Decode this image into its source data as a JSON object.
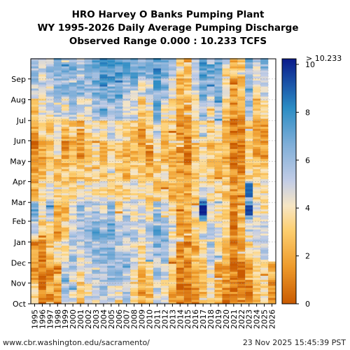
{
  "chart_data": {
    "type": "heatmap",
    "title_lines": [
      "HRO Harvey O Banks Pumping Plant",
      "WY 1995-2026 Daily Average Pumping Discharge",
      "Observed Range 0.000 : 10.233 TCFS"
    ],
    "x_categories": [
      "1995",
      "1996",
      "1997",
      "1998",
      "1999",
      "2000",
      "2001",
      "2002",
      "2003",
      "2004",
      "2005",
      "2006",
      "2007",
      "2008",
      "2009",
      "2010",
      "2011",
      "2012",
      "2013",
      "2014",
      "2015",
      "2016",
      "2017",
      "2018",
      "2019",
      "2020",
      "2021",
      "2022",
      "2023",
      "2024",
      "2025",
      "2026"
    ],
    "y_months": [
      "Oct",
      "Nov",
      "Dec",
      "Jan",
      "Feb",
      "Mar",
      "Apr",
      "May",
      "Jun",
      "Jul",
      "Aug",
      "Sep"
    ],
    "colorbar": {
      "min": 0,
      "max": 10,
      "ticks": [
        "0",
        "2",
        "4",
        "6",
        "8",
        "10"
      ],
      "over_label": "> 10.233",
      "stops": [
        {
          "v": 0,
          "color": "#c95a00"
        },
        {
          "v": 1.5,
          "color": "#ee9a2a"
        },
        {
          "v": 3,
          "color": "#fdcf70"
        },
        {
          "v": 4,
          "color": "#f7e6c4"
        },
        {
          "v": 5,
          "color": "#c3cde6"
        },
        {
          "v": 6.5,
          "color": "#7faed8"
        },
        {
          "v": 8,
          "color": "#2b8cc4"
        },
        {
          "v": 10,
          "color": "#0a1a8a"
        }
      ]
    },
    "monthly_mean_by_year": {
      "1995": [
        3.2,
        1.2,
        1.8,
        5.0,
        6.5,
        2.5,
        1.8,
        1.0,
        1.4,
        3.0,
        5.0,
        5.5
      ],
      "1996": [
        0.8,
        0.9,
        0.8,
        2.8,
        3.5,
        4.0,
        2.8,
        2.0,
        3.0,
        4.0,
        4.8,
        5.0
      ],
      "1997": [
        1.6,
        1.5,
        2.4,
        3.6,
        5.5,
        4.0,
        3.4,
        2.8,
        3.0,
        4.4,
        5.2,
        6.0
      ],
      "1998": [
        2.0,
        2.8,
        4.0,
        1.8,
        2.4,
        3.2,
        3.0,
        3.4,
        3.6,
        5.2,
        6.0,
        6.2
      ],
      "1999": [
        5.5,
        4.8,
        4.5,
        2.8,
        2.0,
        3.2,
        2.6,
        1.8,
        2.8,
        4.6,
        6.0,
        6.5
      ],
      "2000": [
        4.8,
        5.2,
        5.0,
        5.0,
        4.5,
        3.8,
        3.0,
        2.2,
        3.2,
        5.2,
        6.2,
        6.6
      ],
      "2001": [
        3.0,
        3.8,
        4.8,
        6.0,
        5.6,
        3.8,
        2.8,
        1.6,
        2.0,
        4.0,
        5.8,
        5.5
      ],
      "2002": [
        4.2,
        4.8,
        5.2,
        5.8,
        5.0,
        4.0,
        3.0,
        2.8,
        3.4,
        5.0,
        5.8,
        6.0
      ],
      "2003": [
        5.0,
        5.6,
        5.8,
        6.2,
        5.4,
        3.8,
        3.2,
        3.6,
        4.2,
        5.8,
        6.2,
        6.8
      ],
      "2004": [
        5.8,
        6.0,
        6.0,
        5.8,
        5.0,
        3.6,
        2.8,
        2.6,
        3.6,
        5.6,
        6.4,
        7.0
      ],
      "2005": [
        4.8,
        5.8,
        6.0,
        6.5,
        5.8,
        3.6,
        3.0,
        2.8,
        4.4,
        6.0,
        6.6,
        6.8
      ],
      "2006": [
        4.4,
        5.2,
        5.6,
        4.8,
        3.6,
        3.8,
        3.0,
        3.0,
        4.2,
        6.0,
        6.6,
        6.8
      ],
      "2007": [
        5.4,
        5.0,
        5.6,
        6.0,
        4.8,
        3.2,
        2.4,
        1.8,
        3.0,
        4.6,
        5.8,
        6.5
      ],
      "2008": [
        3.0,
        4.0,
        4.4,
        4.8,
        4.2,
        3.6,
        3.0,
        2.4,
        3.0,
        4.6,
        5.6,
        6.6
      ],
      "2009": [
        1.4,
        2.4,
        3.6,
        5.0,
        4.4,
        3.8,
        3.2,
        2.0,
        1.8,
        2.8,
        4.8,
        6.0
      ],
      "2010": [
        2.2,
        3.2,
        4.4,
        5.6,
        4.0,
        3.6,
        2.4,
        1.6,
        2.6,
        4.0,
        5.0,
        6.4
      ],
      "2011": [
        4.6,
        5.4,
        6.0,
        6.4,
        5.6,
        3.4,
        3.0,
        3.6,
        5.0,
        6.4,
        6.8,
        7.2
      ],
      "2012": [
        3.8,
        4.8,
        5.8,
        6.2,
        4.6,
        3.4,
        3.0,
        2.6,
        3.0,
        4.4,
        6.0,
        6.6
      ],
      "2013": [
        2.2,
        2.6,
        4.4,
        4.0,
        3.0,
        2.6,
        2.2,
        2.4,
        3.2,
        4.0,
        4.6,
        5.2
      ],
      "2014": [
        0.8,
        1.2,
        1.6,
        2.0,
        2.4,
        2.0,
        1.6,
        1.2,
        1.2,
        2.0,
        2.6,
        3.4
      ],
      "2015": [
        0.6,
        0.8,
        1.4,
        1.8,
        2.0,
        2.2,
        1.4,
        1.2,
        1.2,
        1.8,
        2.6,
        3.2
      ],
      "2016": [
        1.4,
        1.8,
        2.6,
        3.4,
        3.8,
        3.0,
        2.4,
        2.2,
        3.0,
        4.0,
        5.0,
        5.6
      ],
      "2017": [
        2.6,
        3.0,
        4.0,
        4.6,
        8.5,
        4.0,
        3.6,
        3.8,
        4.2,
        6.2,
        6.6,
        7.0
      ],
      "2018": [
        3.6,
        4.4,
        5.2,
        5.0,
        4.2,
        3.6,
        3.0,
        2.8,
        2.6,
        4.4,
        5.8,
        6.4
      ],
      "2019": [
        2.6,
        2.4,
        4.0,
        4.4,
        4.0,
        3.6,
        3.0,
        3.0,
        3.6,
        5.4,
        6.4,
        6.8
      ],
      "2020": [
        1.4,
        1.8,
        3.0,
        3.6,
        3.0,
        2.6,
        2.4,
        1.8,
        1.8,
        2.8,
        3.6,
        4.6
      ],
      "2021": [
        0.8,
        0.9,
        1.2,
        1.4,
        1.6,
        1.6,
        1.2,
        0.9,
        1.0,
        1.4,
        1.8,
        2.2
      ],
      "2022": [
        0.6,
        0.9,
        1.6,
        2.6,
        2.4,
        2.0,
        1.4,
        1.0,
        1.0,
        1.6,
        2.0,
        2.6
      ],
      "2023": [
        1.0,
        1.6,
        3.2,
        5.0,
        6.2,
        3.8,
        3.6,
        3.0,
        3.8,
        5.8,
        6.4,
        6.2
      ],
      "2024": [
        2.8,
        3.0,
        4.0,
        4.6,
        4.4,
        3.6,
        2.8,
        1.8,
        1.8,
        2.6,
        3.6,
        5.0
      ],
      "2025": [
        3.0,
        3.6,
        5.2,
        4.8,
        4.0,
        3.2,
        2.6,
        1.6,
        2.0,
        3.4,
        4.8,
        6.0
      ],
      "2026": [
        1.6,
        2.2,
        3.0,
        null,
        null,
        null,
        null,
        null,
        null,
        null,
        null,
        null
      ]
    },
    "notable_events": [
      {
        "year": "2017",
        "month": "Feb",
        "value": 10.2
      },
      {
        "year": "2023",
        "month": "Feb",
        "value": 9.6
      },
      {
        "year": "2023",
        "month": "Mar",
        "value": 9.0
      }
    ],
    "grid": "dashed"
  },
  "footer": {
    "left": "www.cbr.washington.edu/sacramento/",
    "right": "23 Nov 2025 15:45:39 PST"
  }
}
